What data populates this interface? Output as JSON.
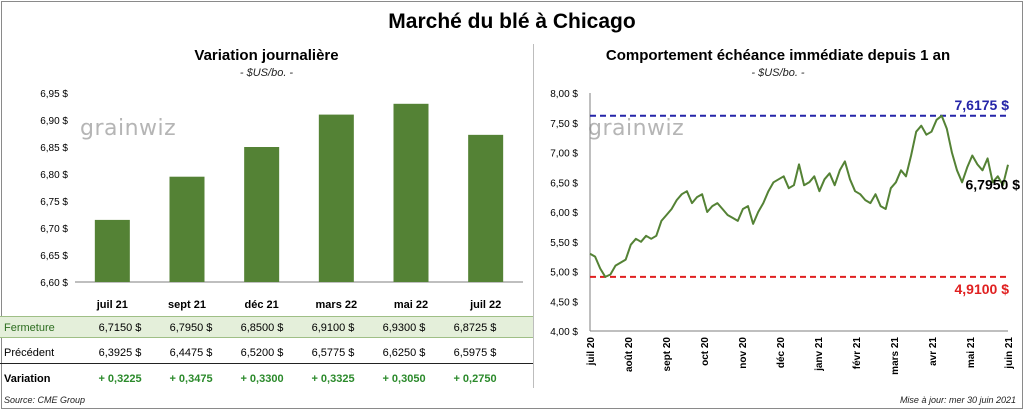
{
  "title": "Marché du blé à Chicago",
  "source": "Source: CME Group",
  "updated": "Mise à jour: mer 30 juin 2021",
  "watermark": "grainwiz",
  "chart_data": [
    {
      "type": "bar",
      "title": "Variation  journalière",
      "subtitle": "- $US/bo. -",
      "categories": [
        "juil 21",
        "sept 21",
        "déc 21",
        "mars 22",
        "mai 22",
        "juil 22"
      ],
      "values": [
        6.715,
        6.795,
        6.85,
        6.91,
        6.93,
        6.8725
      ],
      "ylim": [
        6.6,
        6.95
      ],
      "yticks": [
        "6,60 $",
        "6,65 $",
        "6,70 $",
        "6,75 $",
        "6,80 $",
        "6,85 $",
        "6,90 $",
        "6,95 $"
      ],
      "bar_color": "#548235",
      "grid": false
    },
    {
      "type": "line",
      "title": "Comportement  échéance immédiate depuis 1 an",
      "subtitle": "- $US/bo. -",
      "ylim": [
        4.0,
        8.0
      ],
      "yticks": [
        "4,00 $",
        "4,50 $",
        "5,00 $",
        "5,50 $",
        "6,00 $",
        "6,50 $",
        "7,00 $",
        "7,50 $",
        "8,00 $"
      ],
      "xticks": [
        "juil 20",
        "août 20",
        "sept 20",
        "oct 20",
        "nov 20",
        "déc 20",
        "janv 21",
        "févr 21",
        "mars 21",
        "avr 21",
        "mai 21",
        "juin 21"
      ],
      "line_color": "#548235",
      "grid": false,
      "max_line": {
        "value": 7.6175,
        "label": "7,6175 $",
        "color": "#2424a8"
      },
      "min_line": {
        "value": 4.91,
        "label": "4,9100 $",
        "color": "#e02020"
      },
      "last_label": "6,7950 $",
      "values": [
        5.3,
        5.25,
        5.05,
        4.91,
        4.95,
        5.1,
        5.15,
        5.2,
        5.45,
        5.55,
        5.5,
        5.6,
        5.55,
        5.6,
        5.85,
        5.95,
        6.05,
        6.2,
        6.3,
        6.35,
        6.15,
        6.25,
        6.3,
        6.0,
        6.1,
        6.15,
        6.05,
        5.95,
        5.9,
        5.85,
        6.05,
        6.1,
        5.8,
        6.0,
        6.15,
        6.35,
        6.5,
        6.55,
        6.6,
        6.4,
        6.45,
        6.8,
        6.45,
        6.5,
        6.6,
        6.35,
        6.55,
        6.65,
        6.45,
        6.7,
        6.85,
        6.55,
        6.35,
        6.3,
        6.2,
        6.15,
        6.3,
        6.1,
        6.05,
        6.4,
        6.5,
        6.7,
        6.6,
        6.95,
        7.35,
        7.45,
        7.3,
        7.35,
        7.55,
        7.6175,
        7.4,
        7.0,
        6.7,
        6.5,
        6.75,
        6.95,
        6.8,
        6.7,
        6.9,
        6.5,
        6.6,
        6.45,
        6.795
      ]
    }
  ],
  "table": {
    "rows": [
      {
        "label": "Fermeture",
        "cells": [
          "6,7150  $",
          "6,7950  $",
          "6,8500  $",
          "6,9100  $",
          "6,9300  $",
          "6,8725  $"
        ]
      },
      {
        "label": "Précédent",
        "cells": [
          "6,3925  $",
          "6,4475  $",
          "6,5200  $",
          "6,5775  $",
          "6,6250  $",
          "6,5975  $"
        ]
      },
      {
        "label": "Variation",
        "cells": [
          "+ 0,3225",
          "+ 0,3475",
          "+ 0,3300",
          "+ 0,3325",
          "+ 0,3050",
          "+ 0,2750"
        ]
      }
    ]
  }
}
